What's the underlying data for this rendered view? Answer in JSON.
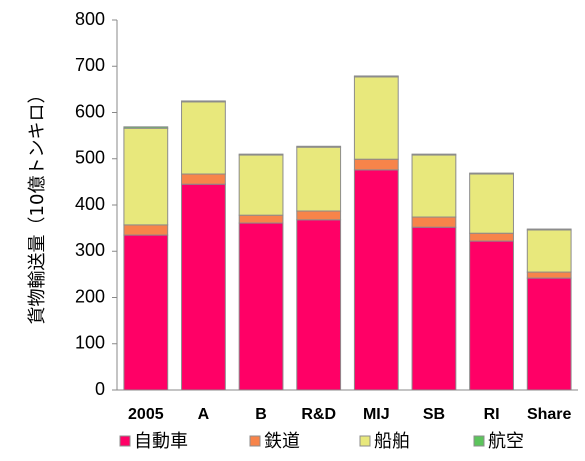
{
  "chart_data": {
    "type": "stacked_bar",
    "y_label": "貨物輸送量（10億トンキロ）",
    "categories": [
      "2005",
      "A",
      "B",
      "R&D",
      "MIJ",
      "SB",
      "RI",
      "Share"
    ],
    "series": [
      {
        "name": "自動車",
        "color": "#ff0066",
        "values": [
          335,
          445,
          361,
          368,
          476,
          352,
          322,
          242
        ]
      },
      {
        "name": "鉄道",
        "color": "#f7844a",
        "values": [
          22,
          22,
          17,
          19,
          23,
          22,
          17,
          13
        ]
      },
      {
        "name": "船舶",
        "color": "#e8e87c",
        "values": [
          209,
          156,
          130,
          138,
          178,
          134,
          128,
          91
        ]
      },
      {
        "name": "航空",
        "color": "#5cc45c",
        "values": [
          3,
          2,
          2,
          2,
          2,
          2,
          2,
          2
        ]
      }
    ],
    "ylim": [
      0,
      800
    ],
    "yticks": [
      0,
      100,
      200,
      300,
      400,
      500,
      600,
      700,
      800
    ],
    "grid": false
  }
}
